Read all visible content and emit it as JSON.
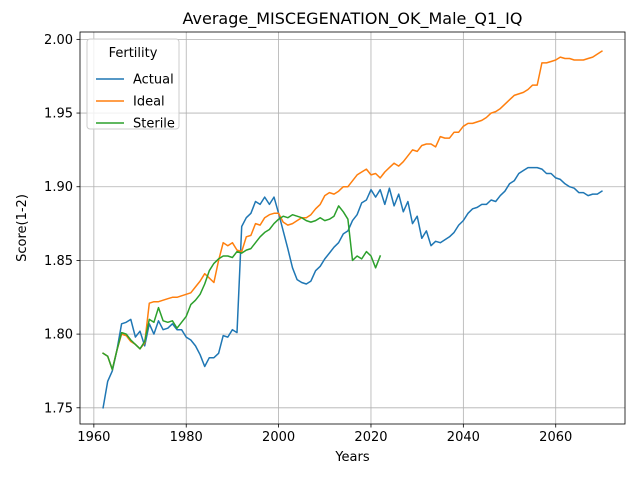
{
  "chart_data": {
    "type": "line",
    "title": "Average_MISCEGENATION_OK_Male_Q1_IQ",
    "xlabel": "Years",
    "ylabel": "Score(1-2)",
    "xlim": [
      1957,
      2075
    ],
    "ylim": [
      1.739,
      2.005
    ],
    "xticks": [
      1960,
      1980,
      2000,
      2020,
      2040,
      2060
    ],
    "yticks": [
      1.75,
      1.8,
      1.85,
      1.9,
      1.95,
      2.0
    ],
    "xtick_labels": [
      "1960",
      "1980",
      "2000",
      "2020",
      "2040",
      "2060"
    ],
    "ytick_labels": [
      "1.75",
      "1.80",
      "1.85",
      "1.90",
      "1.95",
      "2.00"
    ],
    "grid": true,
    "legend": {
      "title": "Fertility",
      "placement": "top-left"
    },
    "series": [
      {
        "name": "Actual",
        "color": "#1f77b4",
        "x": [
          1962,
          1963,
          1964,
          1965,
          1966,
          1967,
          1968,
          1969,
          1970,
          1971,
          1972,
          1973,
          1974,
          1975,
          1976,
          1977,
          1978,
          1979,
          1980,
          1981,
          1982,
          1983,
          1984,
          1985,
          1986,
          1987,
          1988,
          1989,
          1990,
          1991,
          1992,
          1993,
          1994,
          1995,
          1996,
          1997,
          1998,
          1999,
          2000,
          2001,
          2002,
          2003,
          2004,
          2005,
          2006,
          2007,
          2008,
          2009,
          2010,
          2011,
          2012,
          2013,
          2014,
          2015,
          2016,
          2017,
          2018,
          2019,
          2020,
          2021,
          2022,
          2023,
          2024,
          2025,
          2026,
          2027,
          2028,
          2029,
          2030,
          2031,
          2032,
          2033,
          2034,
          2035,
          2036,
          2037,
          2038,
          2039,
          2040,
          2041,
          2042,
          2043,
          2044,
          2045,
          2046,
          2047,
          2048,
          2049,
          2050,
          2051,
          2052,
          2053,
          2054,
          2055,
          2056,
          2057,
          2058,
          2059,
          2060,
          2061,
          2062,
          2063,
          2064,
          2065,
          2066,
          2067,
          2068,
          2069,
          2070
        ],
        "values": [
          1.75,
          1.768,
          1.775,
          1.789,
          1.807,
          1.808,
          1.81,
          1.798,
          1.802,
          1.792,
          1.807,
          1.8,
          1.809,
          1.803,
          1.804,
          1.807,
          1.803,
          1.803,
          1.798,
          1.796,
          1.792,
          1.786,
          1.778,
          1.784,
          1.784,
          1.787,
          1.799,
          1.798,
          1.803,
          1.801,
          1.873,
          1.879,
          1.882,
          1.89,
          1.888,
          1.893,
          1.888,
          1.893,
          1.882,
          1.87,
          1.858,
          1.845,
          1.837,
          1.835,
          1.834,
          1.836,
          1.843,
          1.846,
          1.851,
          1.855,
          1.859,
          1.862,
          1.868,
          1.87,
          1.877,
          1.881,
          1.889,
          1.891,
          1.898,
          1.893,
          1.898,
          1.888,
          1.899,
          1.887,
          1.895,
          1.883,
          1.89,
          1.875,
          1.88,
          1.865,
          1.87,
          1.86,
          1.863,
          1.862,
          1.864,
          1.866,
          1.869,
          1.874,
          1.877,
          1.882,
          1.885,
          1.886,
          1.888,
          1.888,
          1.891,
          1.89,
          1.894,
          1.897,
          1.902,
          1.904,
          1.909,
          1.911,
          1.913,
          1.913,
          1.913,
          1.912,
          1.909,
          1.909,
          1.906,
          1.905,
          1.902,
          1.9,
          1.899,
          1.896,
          1.896,
          1.894,
          1.895,
          1.895,
          1.897
        ]
      },
      {
        "name": "Ideal",
        "color": "#ff7f0e",
        "x": [
          1962,
          1963,
          1964,
          1965,
          1966,
          1967,
          1968,
          1969,
          1970,
          1971,
          1972,
          1973,
          1974,
          1975,
          1976,
          1977,
          1978,
          1979,
          1980,
          1981,
          1982,
          1983,
          1984,
          1985,
          1986,
          1987,
          1988,
          1989,
          1990,
          1991,
          1992,
          1993,
          1994,
          1995,
          1996,
          1997,
          1998,
          1999,
          2000,
          2001,
          2002,
          2003,
          2004,
          2005,
          2006,
          2007,
          2008,
          2009,
          2010,
          2011,
          2012,
          2013,
          2014,
          2015,
          2016,
          2017,
          2018,
          2019,
          2020,
          2021,
          2022,
          2023,
          2024,
          2025,
          2026,
          2027,
          2028,
          2029,
          2030,
          2031,
          2032,
          2033,
          2034,
          2035,
          2036,
          2037,
          2038,
          2039,
          2040,
          2041,
          2042,
          2043,
          2044,
          2045,
          2046,
          2047,
          2048,
          2049,
          2050,
          2051,
          2052,
          2053,
          2054,
          2055,
          2056,
          2057,
          2058,
          2059,
          2060,
          2061,
          2062,
          2063,
          2064,
          2065,
          2066,
          2067,
          2068,
          2069,
          2070
        ],
        "values": [
          1.787,
          1.785,
          1.776,
          1.789,
          1.8,
          1.799,
          1.795,
          1.793,
          1.79,
          1.794,
          1.821,
          1.822,
          1.822,
          1.823,
          1.824,
          1.825,
          1.825,
          1.826,
          1.827,
          1.828,
          1.832,
          1.836,
          1.841,
          1.838,
          1.835,
          1.85,
          1.862,
          1.86,
          1.862,
          1.857,
          1.856,
          1.866,
          1.867,
          1.875,
          1.874,
          1.879,
          1.881,
          1.882,
          1.882,
          1.876,
          1.874,
          1.875,
          1.877,
          1.879,
          1.879,
          1.881,
          1.885,
          1.888,
          1.894,
          1.896,
          1.895,
          1.897,
          1.9,
          1.9,
          1.904,
          1.908,
          1.91,
          1.912,
          1.908,
          1.909,
          1.906,
          1.91,
          1.913,
          1.916,
          1.914,
          1.917,
          1.921,
          1.925,
          1.924,
          1.928,
          1.929,
          1.929,
          1.927,
          1.934,
          1.933,
          1.933,
          1.937,
          1.937,
          1.941,
          1.943,
          1.943,
          1.944,
          1.945,
          1.947,
          1.95,
          1.951,
          1.953,
          1.956,
          1.959,
          1.962,
          1.963,
          1.964,
          1.966,
          1.969,
          1.969,
          1.984,
          1.984,
          1.985,
          1.986,
          1.988,
          1.987,
          1.987,
          1.986,
          1.986,
          1.986,
          1.987,
          1.988,
          1.99,
          1.992
        ]
      },
      {
        "name": "Sterile",
        "color": "#2ca02c",
        "x": [
          1962,
          1963,
          1964,
          1965,
          1966,
          1967,
          1968,
          1969,
          1970,
          1971,
          1972,
          1973,
          1974,
          1975,
          1976,
          1977,
          1978,
          1979,
          1980,
          1981,
          1982,
          1983,
          1984,
          1985,
          1986,
          1987,
          1988,
          1989,
          1990,
          1991,
          1992,
          1993,
          1994,
          1995,
          1996,
          1997,
          1998,
          1999,
          2000,
          2001,
          2002,
          2003,
          2004,
          2005,
          2006,
          2007,
          2008,
          2009,
          2010,
          2011,
          2012,
          2013,
          2014,
          2015,
          2016,
          2017,
          2018,
          2019,
          2020,
          2021,
          2022
        ],
        "values": [
          1.787,
          1.785,
          1.776,
          1.789,
          1.801,
          1.8,
          1.796,
          1.793,
          1.79,
          1.795,
          1.81,
          1.808,
          1.818,
          1.809,
          1.808,
          1.809,
          1.804,
          1.808,
          1.812,
          1.82,
          1.823,
          1.827,
          1.834,
          1.843,
          1.848,
          1.851,
          1.853,
          1.853,
          1.852,
          1.856,
          1.855,
          1.857,
          1.858,
          1.862,
          1.866,
          1.869,
          1.871,
          1.875,
          1.878,
          1.88,
          1.879,
          1.881,
          1.88,
          1.879,
          1.877,
          1.876,
          1.877,
          1.879,
          1.877,
          1.878,
          1.88,
          1.887,
          1.883,
          1.878,
          1.85,
          1.853,
          1.851,
          1.856,
          1.853,
          1.845,
          1.853
        ]
      }
    ]
  }
}
